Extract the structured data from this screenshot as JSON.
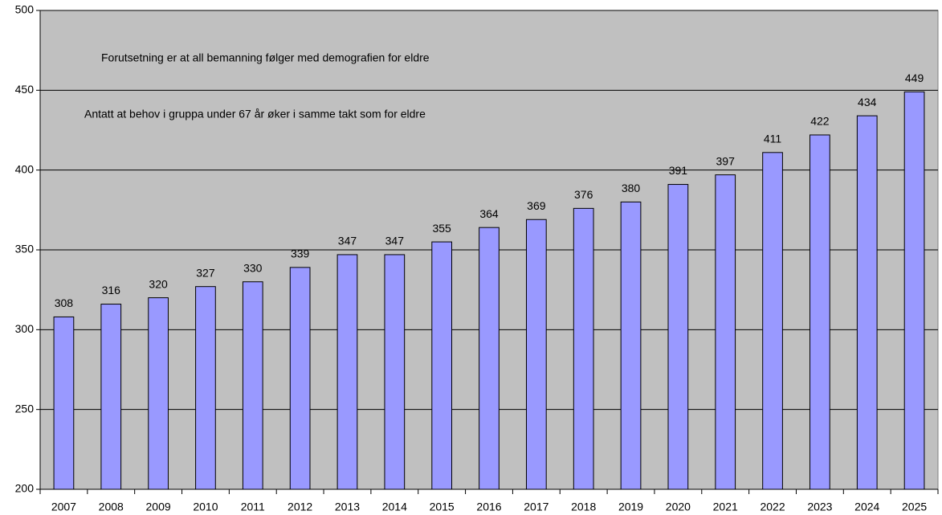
{
  "chart_data": {
    "type": "bar",
    "annotations": [
      "Forutsetning er at all bemanning følger med demografien for eldre",
      "Antatt at behov i gruppa under 67 år øker i samme takt som for eldre"
    ],
    "categories": [
      "2007",
      "2008",
      "2009",
      "2010",
      "2011",
      "2012",
      "2013",
      "2014",
      "2015",
      "2016",
      "2017",
      "2018",
      "2019",
      "2020",
      "2021",
      "2022",
      "2023",
      "2024",
      "2025"
    ],
    "values": [
      308,
      316,
      320,
      327,
      330,
      339,
      347,
      347,
      355,
      364,
      369,
      376,
      380,
      391,
      397,
      411,
      422,
      434,
      449
    ],
    "color": "#9999ff",
    "background": "#c0c0c0",
    "ylim": [
      200,
      500
    ],
    "yticks": [
      200,
      250,
      300,
      350,
      400,
      450,
      500
    ],
    "grid": true
  }
}
